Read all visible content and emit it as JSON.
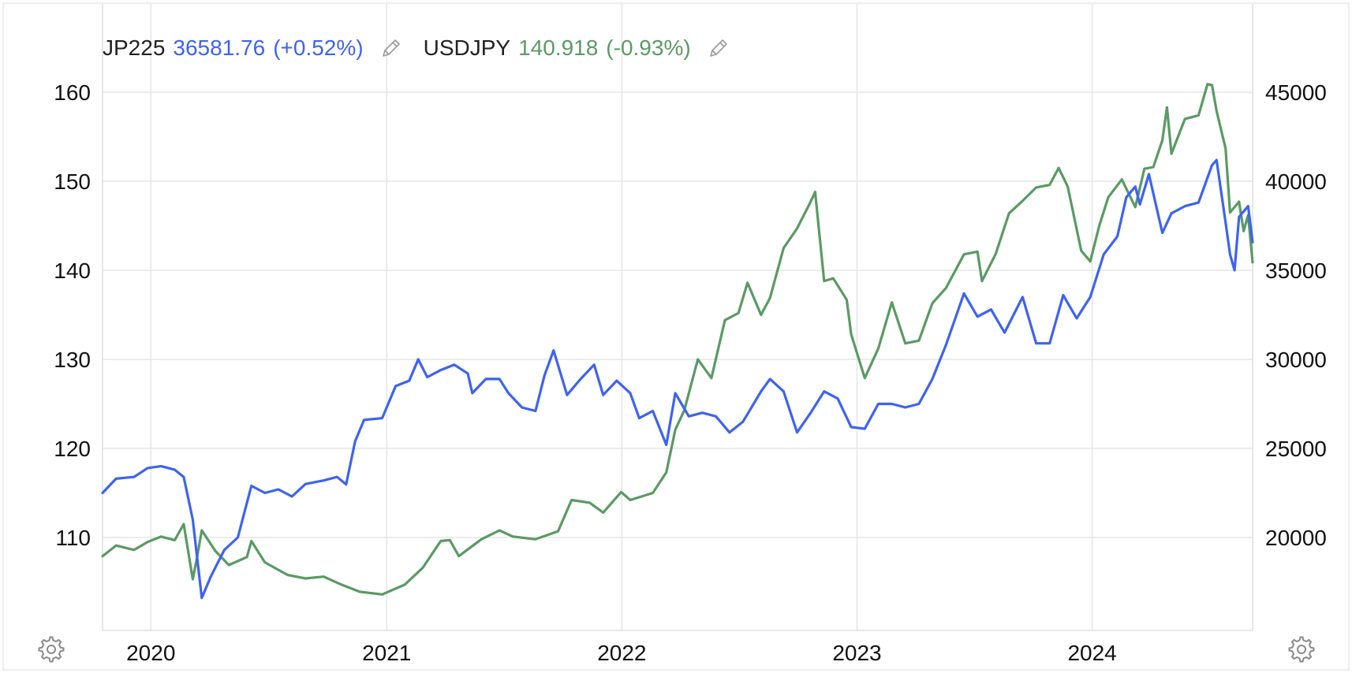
{
  "legend": {
    "items": [
      {
        "symbol": "JP225",
        "value": "36581.76",
        "change": "(+0.52%)",
        "color": "#3d63f0",
        "edit_icon": "pencil-icon"
      },
      {
        "symbol": "USDJPY",
        "value": "140.918",
        "change": "(-0.93%)",
        "color": "#5a9a63",
        "edit_icon": "pencil-icon"
      }
    ]
  },
  "controls": {
    "left_icon": "gear-icon",
    "right_icon": "gear-icon"
  },
  "colors": {
    "grid": "#e5e5e5",
    "axis_text": "#111111",
    "jp225": "#3d63f0",
    "usdjpy": "#5a9a63"
  },
  "chart_data": {
    "type": "line",
    "x_ticks": [
      "2020",
      "2021",
      "2022",
      "2023",
      "2024"
    ],
    "x_range": [
      "2019-10-18",
      "2024-09-06"
    ],
    "left_axis": {
      "ticks": [
        "110",
        "120",
        "130",
        "140",
        "150",
        "160"
      ],
      "range": [
        100,
        160
      ]
    },
    "right_axis": {
      "ticks": [
        "20000",
        "25000",
        "30000",
        "35000",
        "40000",
        "45000"
      ],
      "range": [
        15000,
        45000
      ]
    },
    "grid": true,
    "series": [
      {
        "name": "JP225",
        "axis": "right",
        "color": "#3d63f0",
        "points": [
          [
            "2019-10-18",
            22500
          ],
          [
            "2019-11-08",
            23300
          ],
          [
            "2019-12-06",
            23400
          ],
          [
            "2019-12-27",
            23900
          ],
          [
            "2020-01-17",
            24000
          ],
          [
            "2020-02-07",
            23800
          ],
          [
            "2020-02-21",
            23400
          ],
          [
            "2020-03-06",
            21000
          ],
          [
            "2020-03-20",
            16600
          ],
          [
            "2020-04-03",
            17800
          ],
          [
            "2020-04-24",
            19300
          ],
          [
            "2020-05-15",
            20000
          ],
          [
            "2020-06-05",
            22900
          ],
          [
            "2020-06-26",
            22500
          ],
          [
            "2020-07-17",
            22700
          ],
          [
            "2020-08-07",
            22300
          ],
          [
            "2020-08-28",
            23000
          ],
          [
            "2020-09-25",
            23200
          ],
          [
            "2020-10-16",
            23400
          ],
          [
            "2020-10-30",
            22980
          ],
          [
            "2020-11-13",
            25400
          ],
          [
            "2020-11-27",
            26600
          ],
          [
            "2020-12-25",
            26700
          ],
          [
            "2021-01-15",
            28500
          ],
          [
            "2021-02-05",
            28800
          ],
          [
            "2021-02-19",
            30000
          ],
          [
            "2021-03-05",
            29000
          ],
          [
            "2021-03-26",
            29400
          ],
          [
            "2021-04-16",
            29700
          ],
          [
            "2021-05-07",
            29200
          ],
          [
            "2021-05-14",
            28100
          ],
          [
            "2021-06-04",
            28900
          ],
          [
            "2021-06-25",
            28900
          ],
          [
            "2021-07-09",
            28100
          ],
          [
            "2021-07-30",
            27300
          ],
          [
            "2021-08-20",
            27100
          ],
          [
            "2021-09-03",
            29100
          ],
          [
            "2021-09-17",
            30500
          ],
          [
            "2021-10-08",
            28000
          ],
          [
            "2021-10-29",
            28900
          ],
          [
            "2021-11-19",
            29700
          ],
          [
            "2021-12-03",
            28000
          ],
          [
            "2021-12-24",
            28800
          ],
          [
            "2022-01-14",
            28100
          ],
          [
            "2022-01-28",
            26700
          ],
          [
            "2022-02-18",
            27100
          ],
          [
            "2022-03-11",
            25200
          ],
          [
            "2022-03-25",
            28100
          ],
          [
            "2022-04-15",
            26800
          ],
          [
            "2022-05-06",
            27000
          ],
          [
            "2022-05-27",
            26800
          ],
          [
            "2022-06-17",
            25900
          ],
          [
            "2022-07-08",
            26500
          ],
          [
            "2022-08-05",
            28200
          ],
          [
            "2022-08-19",
            28900
          ],
          [
            "2022-09-09",
            28200
          ],
          [
            "2022-09-30",
            25900
          ],
          [
            "2022-10-21",
            27000
          ],
          [
            "2022-11-11",
            28200
          ],
          [
            "2022-12-02",
            27800
          ],
          [
            "2022-12-23",
            26200
          ],
          [
            "2023-01-13",
            26100
          ],
          [
            "2023-02-03",
            27500
          ],
          [
            "2023-02-24",
            27500
          ],
          [
            "2023-03-17",
            27300
          ],
          [
            "2023-04-07",
            27500
          ],
          [
            "2023-04-28",
            28900
          ],
          [
            "2023-05-19",
            30800
          ],
          [
            "2023-06-16",
            33700
          ],
          [
            "2023-07-07",
            32400
          ],
          [
            "2023-07-28",
            32800
          ],
          [
            "2023-08-18",
            31500
          ],
          [
            "2023-09-15",
            33500
          ],
          [
            "2023-10-06",
            30900
          ],
          [
            "2023-10-27",
            30900
          ],
          [
            "2023-11-17",
            33600
          ],
          [
            "2023-12-08",
            32300
          ],
          [
            "2023-12-29",
            33500
          ],
          [
            "2024-01-19",
            35900
          ],
          [
            "2024-02-09",
            36900
          ],
          [
            "2024-02-23",
            39100
          ],
          [
            "2024-03-08",
            39700
          ],
          [
            "2024-03-15",
            38700
          ],
          [
            "2024-03-29",
            40400
          ],
          [
            "2024-04-19",
            37100
          ],
          [
            "2024-05-03",
            38200
          ],
          [
            "2024-05-24",
            38600
          ],
          [
            "2024-06-14",
            38800
          ],
          [
            "2024-07-05",
            40900
          ],
          [
            "2024-07-12",
            41190
          ],
          [
            "2024-07-26",
            37700
          ],
          [
            "2024-08-02",
            35900
          ],
          [
            "2024-08-09",
            35000
          ],
          [
            "2024-08-16",
            38000
          ],
          [
            "2024-08-30",
            38600
          ],
          [
            "2024-09-06",
            36581
          ]
        ]
      },
      {
        "name": "USDJPY",
        "axis": "left",
        "color": "#5a9a63",
        "points": [
          [
            "2019-10-18",
            107.9
          ],
          [
            "2019-11-08",
            109.1
          ],
          [
            "2019-12-06",
            108.6
          ],
          [
            "2019-12-27",
            109.5
          ],
          [
            "2020-01-17",
            110.1
          ],
          [
            "2020-02-07",
            109.7
          ],
          [
            "2020-02-21",
            111.5
          ],
          [
            "2020-03-06",
            105.3
          ],
          [
            "2020-03-13",
            107.9
          ],
          [
            "2020-03-20",
            110.8
          ],
          [
            "2020-04-10",
            108.5
          ],
          [
            "2020-05-01",
            106.9
          ],
          [
            "2020-05-29",
            107.8
          ],
          [
            "2020-06-05",
            109.6
          ],
          [
            "2020-06-26",
            107.2
          ],
          [
            "2020-07-31",
            105.8
          ],
          [
            "2020-08-28",
            105.4
          ],
          [
            "2020-09-25",
            105.6
          ],
          [
            "2020-10-23",
            104.7
          ],
          [
            "2020-11-20",
            103.9
          ],
          [
            "2020-12-25",
            103.6
          ],
          [
            "2021-01-29",
            104.7
          ],
          [
            "2021-02-26",
            106.6
          ],
          [
            "2021-03-26",
            109.6
          ],
          [
            "2021-04-09",
            109.7
          ],
          [
            "2021-04-23",
            107.9
          ],
          [
            "2021-05-28",
            109.8
          ],
          [
            "2021-06-25",
            110.8
          ],
          [
            "2021-07-16",
            110.1
          ],
          [
            "2021-08-20",
            109.8
          ],
          [
            "2021-09-24",
            110.7
          ],
          [
            "2021-10-15",
            114.2
          ],
          [
            "2021-11-12",
            113.9
          ],
          [
            "2021-12-03",
            112.8
          ],
          [
            "2021-12-31",
            115.1
          ],
          [
            "2022-01-14",
            114.2
          ],
          [
            "2022-02-18",
            115.0
          ],
          [
            "2022-03-11",
            117.3
          ],
          [
            "2022-03-25",
            122.1
          ],
          [
            "2022-04-08",
            124.3
          ],
          [
            "2022-04-29",
            130.0
          ],
          [
            "2022-05-20",
            127.9
          ],
          [
            "2022-06-10",
            134.4
          ],
          [
            "2022-07-01",
            135.2
          ],
          [
            "2022-07-15",
            138.6
          ],
          [
            "2022-08-05",
            135.0
          ],
          [
            "2022-08-19",
            136.9
          ],
          [
            "2022-09-09",
            142.5
          ],
          [
            "2022-09-30",
            144.7
          ],
          [
            "2022-10-21",
            147.7
          ],
          [
            "2022-10-28",
            148.8
          ],
          [
            "2022-11-11",
            138.8
          ],
          [
            "2022-11-25",
            139.1
          ],
          [
            "2022-12-16",
            136.7
          ],
          [
            "2022-12-23",
            132.8
          ],
          [
            "2023-01-13",
            127.9
          ],
          [
            "2023-02-03",
            131.2
          ],
          [
            "2023-02-24",
            136.4
          ],
          [
            "2023-03-17",
            131.8
          ],
          [
            "2023-04-07",
            132.1
          ],
          [
            "2023-04-28",
            136.3
          ],
          [
            "2023-05-19",
            138.0
          ],
          [
            "2023-06-16",
            141.8
          ],
          [
            "2023-07-07",
            142.1
          ],
          [
            "2023-07-14",
            138.8
          ],
          [
            "2023-08-04",
            141.8
          ],
          [
            "2023-08-25",
            146.4
          ],
          [
            "2023-09-15",
            147.8
          ],
          [
            "2023-10-06",
            149.3
          ],
          [
            "2023-10-27",
            149.6
          ],
          [
            "2023-11-10",
            151.5
          ],
          [
            "2023-11-24",
            149.4
          ],
          [
            "2023-12-15",
            142.2
          ],
          [
            "2023-12-29",
            141.0
          ],
          [
            "2024-01-12",
            145.0
          ],
          [
            "2024-01-26",
            148.2
          ],
          [
            "2024-02-16",
            150.2
          ],
          [
            "2024-03-08",
            147.1
          ],
          [
            "2024-03-22",
            151.4
          ],
          [
            "2024-04-05",
            151.6
          ],
          [
            "2024-04-19",
            154.6
          ],
          [
            "2024-04-26",
            158.3
          ],
          [
            "2024-05-03",
            153.1
          ],
          [
            "2024-05-24",
            157.0
          ],
          [
            "2024-06-14",
            157.4
          ],
          [
            "2024-06-28",
            160.9
          ],
          [
            "2024-07-05",
            160.8
          ],
          [
            "2024-07-12",
            157.9
          ],
          [
            "2024-07-26",
            153.7
          ],
          [
            "2024-08-02",
            146.5
          ],
          [
            "2024-08-16",
            147.7
          ],
          [
            "2024-08-23",
            144.4
          ],
          [
            "2024-08-30",
            146.2
          ],
          [
            "2024-09-06",
            140.9
          ]
        ]
      }
    ]
  }
}
